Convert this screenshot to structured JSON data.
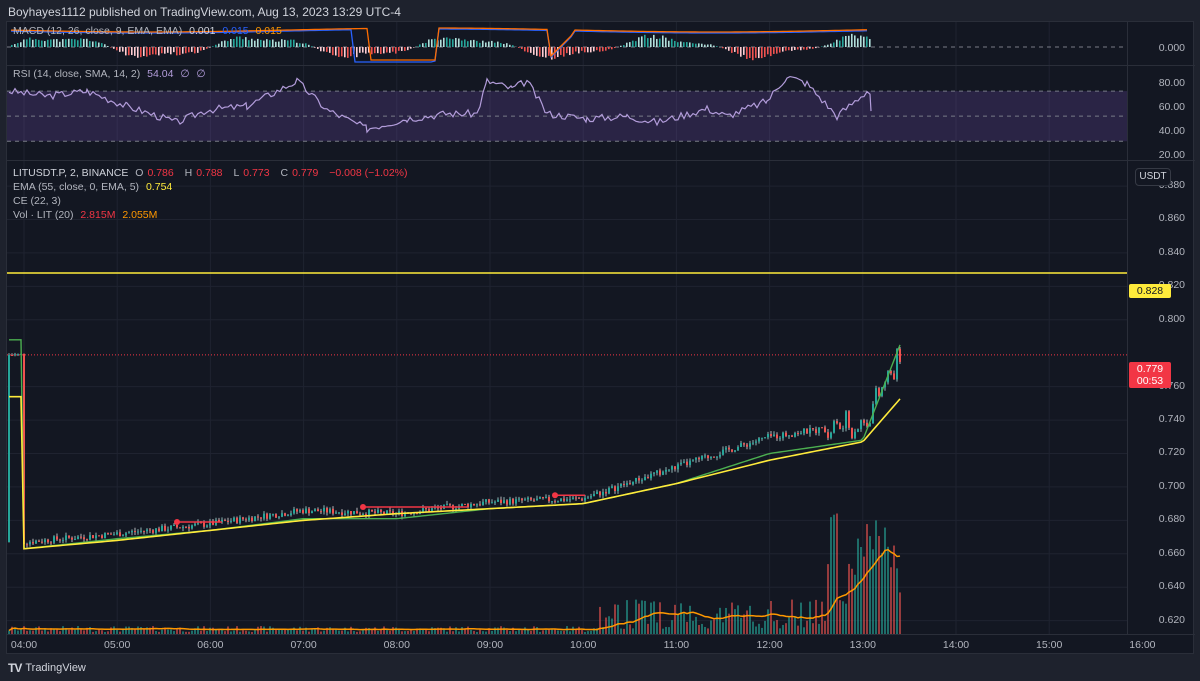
{
  "header": {
    "publisher": "Boyhayes1112 published on TradingView.com, Aug 13, 2023 13:29 UTC-4"
  },
  "macd_pane": {
    "label": "MACD (12, 26, close, 9, EMA, EMA)",
    "histogram": "0.001",
    "macd": "0.015",
    "signal": "0.015",
    "axis_label": "0.000"
  },
  "rsi_pane": {
    "label": "RSI (14, close, SMA, 14, 2)",
    "value": "54.04",
    "extra1": "∅",
    "extra2": "∅",
    "axis_labels": [
      "80.00",
      "60.00",
      "40.00",
      "20.00"
    ]
  },
  "price_pane": {
    "symbol": "LITUSDT.P, 2, BINANCE",
    "open_label": "O",
    "open": "0.786",
    "high_label": "H",
    "high": "0.788",
    "low_label": "L",
    "low": "0.773",
    "close_label": "C",
    "close": "0.779",
    "change": "−0.008 (−1.02%)",
    "ema_label": "EMA (55, close, 0, EMA, 5)",
    "ema_value": "0.754",
    "ce_label": "CE (22, 3)",
    "vol_label": "Vol · LIT (20)",
    "vol_value": "2.815M",
    "vol_ma": "2.055M",
    "currency_button": "USDT",
    "horizontal_line_tag": "0.828",
    "last_price_tag": "0.779",
    "countdown": "00:53",
    "axis_labels": [
      "0.880",
      "0.860",
      "0.840",
      "0.820",
      "0.800",
      "0.760",
      "0.740",
      "0.720",
      "0.700",
      "0.680",
      "0.660",
      "0.640",
      "0.620"
    ]
  },
  "time_axis": [
    "04:00",
    "05:00",
    "06:00",
    "07:00",
    "08:00",
    "09:00",
    "10:00",
    "11:00",
    "12:00",
    "13:00",
    "14:00",
    "15:00",
    "16:00"
  ],
  "footer": {
    "logo": "TV",
    "brand": "TradingView"
  },
  "colors": {
    "background": "#131722",
    "up": "#26a69a",
    "down": "#ef5350",
    "ema": "#ffeb3b",
    "ce_long": "#4caf50",
    "ce_short": "#f23645",
    "rsi_line": "#b39ddb",
    "rsi_band": "#7e57c2",
    "vol_ma": "#ff9800",
    "macd_line": "#2962ff",
    "signal_line": "#ff6d00",
    "hline": "#ffeb3b"
  },
  "chart_data": [
    {
      "type": "line",
      "title": "LITUSDT.P, 2, BINANCE",
      "xlabel": "",
      "ylabel": "USDT",
      "x": [
        "04:00",
        "05:00",
        "06:00",
        "07:00",
        "08:00",
        "09:00",
        "10:00",
        "11:00",
        "12:00",
        "13:00",
        "13:25"
      ],
      "series": [
        {
          "name": "Close (approx)",
          "values": [
            0.667,
            0.672,
            0.678,
            0.686,
            0.684,
            0.691,
            0.693,
            0.712,
            0.73,
            0.738,
            0.779
          ]
        },
        {
          "name": "EMA 55",
          "values": [
            0.663,
            0.668,
            0.674,
            0.68,
            0.684,
            0.687,
            0.69,
            0.702,
            0.716,
            0.727,
            0.754
          ]
        },
        {
          "name": "Chandelier Exit long",
          "values": [
            0.665,
            0.671,
            0.676,
            0.683,
            0.683,
            0.689,
            0.692,
            0.704,
            0.722,
            0.73,
            0.79
          ]
        }
      ],
      "ohlc_last": {
        "open": 0.786,
        "high": 0.788,
        "low": 0.773,
        "close": 0.779,
        "change": -0.008,
        "change_pct": -1.02
      },
      "session_high": 0.82,
      "horizontal_line": 0.828,
      "ylim": [
        0.612,
        0.895
      ],
      "grid": true
    },
    {
      "type": "line",
      "title": "RSI (14, close, SMA, 14, 2)",
      "last_value": 54.04,
      "ylim": [
        20,
        90
      ],
      "bands": [
        30,
        50,
        70
      ],
      "y_ticks": [
        20,
        40,
        60,
        80
      ]
    },
    {
      "type": "bar",
      "title": "MACD (12, 26, close, 9, EMA, EMA)",
      "histogram_last": 0.001,
      "macd_last": 0.015,
      "signal_last": 0.015,
      "y_ticks": [
        0.0
      ]
    },
    {
      "type": "bar",
      "title": "Vol · LIT (20)",
      "last_volume": "2.815M",
      "volume_ma": "2.055M",
      "peak_region": "13:00–13:25"
    }
  ]
}
